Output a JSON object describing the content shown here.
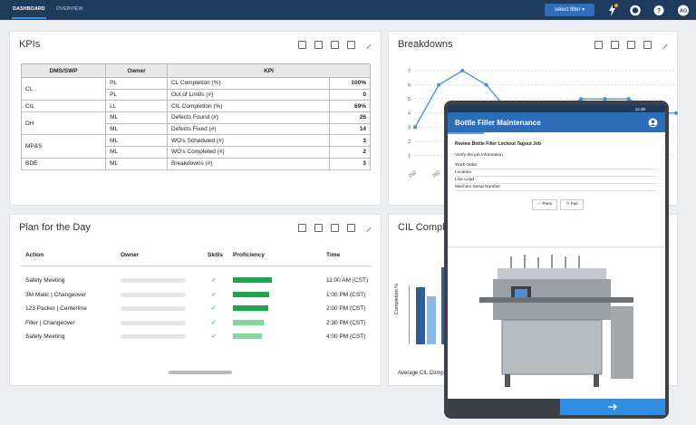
{
  "nav": {
    "tabs": [
      "DASHBOARD",
      "OVERVIEW"
    ],
    "filter": "select filter",
    "avatar": "AG"
  },
  "kpis": {
    "title": "KPIs",
    "headers": [
      "DMS/SWP",
      "Owner",
      "KPI"
    ],
    "groups": [
      {
        "name": "CL",
        "rows": [
          {
            "owner": "PL",
            "kpi": "CL Completion (%)",
            "value": "100%"
          },
          {
            "owner": "PL",
            "kpi": "Out of Limits (#)",
            "value": "0"
          }
        ]
      },
      {
        "name": "CIL",
        "rows": [
          {
            "owner": "LL",
            "kpi": "CIL Completion (%)",
            "value": "69%"
          }
        ]
      },
      {
        "name": "DH",
        "rows": [
          {
            "owner": "ML",
            "kpi": "Defects Found (#)",
            "value": "26"
          },
          {
            "owner": "ML",
            "kpi": "Defects Fixed (#)",
            "value": "14"
          }
        ]
      },
      {
        "name": "MP&S",
        "rows": [
          {
            "owner": "ML",
            "kpi": "WO's Scheduled (#)",
            "value": "3"
          },
          {
            "owner": "ML",
            "kpi": "WO's Completed (#)",
            "value": "2"
          }
        ]
      },
      {
        "name": "BDE",
        "rows": [
          {
            "owner": "ML",
            "kpi": "Breakdowns (#)",
            "value": "3"
          }
        ]
      }
    ]
  },
  "breakdowns": {
    "title": "Breakdowns",
    "chart_data": {
      "type": "line",
      "color": "#3d8fe0",
      "categories": [
        "202",
        "202",
        "202",
        null,
        null,
        null,
        null,
        null,
        null,
        null,
        null,
        null
      ],
      "values": [
        3,
        6,
        7,
        6,
        4,
        3,
        4,
        5,
        5,
        5,
        4,
        4
      ],
      "ylim": [
        0,
        7
      ],
      "yticks": [
        1,
        2,
        3,
        4,
        5,
        6,
        7
      ],
      "grid": true
    }
  },
  "cil": {
    "title": "CIL Completion",
    "y_label": "Completion %",
    "footer": "Average CIL Completion"
  },
  "plan": {
    "title": "Plan for the Day",
    "headers": [
      "Action",
      "Owner",
      "Skills",
      "Proficiency",
      "Time"
    ],
    "rows": [
      {
        "action": "Safety Meeting",
        "proficiency": 100,
        "color": "#1ea64f",
        "time": "11:00 AM (CST)"
      },
      {
        "action": "3M Matic | Changeover",
        "proficiency": 93,
        "color": "#1ea64f",
        "time": "1:00 PM (CST)"
      },
      {
        "action": "123 Packer | Centerline",
        "proficiency": 90,
        "color": "#1ea64f",
        "time": "2:00 PM (CST)"
      },
      {
        "action": "Filler | Changeover",
        "proficiency": 80,
        "color": "#7fd99a",
        "time": "2:30 PM (CST)"
      },
      {
        "action": "Safety Meeting",
        "proficiency": 75,
        "color": "#7fd99a",
        "time": "4:00 PM (CST)"
      }
    ]
  },
  "modal": {
    "clock": "12:39",
    "title": "Bottle Filler Maintenance",
    "task": "Review Bottle Filler Lockout Tagout Job",
    "instruction": "Verify the job information",
    "fields": [
      "Work Order",
      "Location",
      "Line Lead",
      "Machine Serial Number"
    ],
    "pass": "Pass",
    "fail": "Fail"
  }
}
